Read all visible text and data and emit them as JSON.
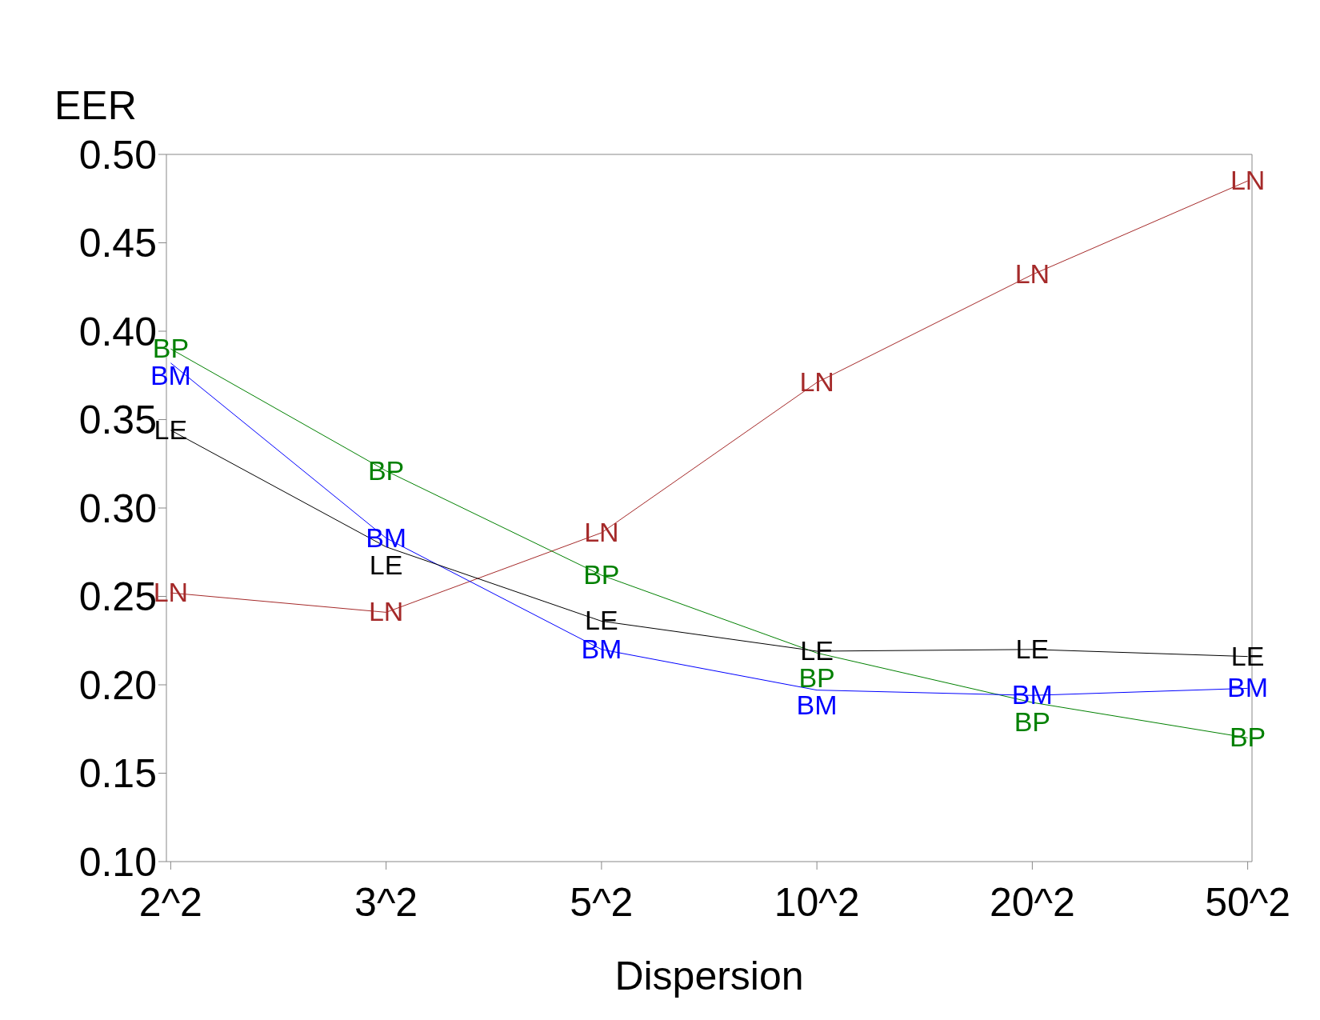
{
  "chart_data": {
    "type": "line",
    "xlabel": "Dispersion",
    "ylabel": "EER",
    "categories": [
      "2^2",
      "3^2",
      "5^2",
      "10^2",
      "20^2",
      "50^2"
    ],
    "series": [
      {
        "name": "LN",
        "color": "#a52a2a",
        "values": [
          0.252,
          0.241,
          0.286,
          0.371,
          0.432,
          0.485
        ]
      },
      {
        "name": "BP",
        "color": "#008000",
        "values": [
          0.39,
          0.321,
          0.262,
          0.218,
          0.19,
          0.17
        ]
      },
      {
        "name": "BM",
        "color": "#0000ff",
        "values": [
          0.382,
          0.283,
          0.22,
          0.197,
          0.194,
          0.198
        ]
      },
      {
        "name": "LE",
        "color": "#000000",
        "values": [
          0.344,
          0.278,
          0.236,
          0.219,
          0.22,
          0.216
        ]
      }
    ],
    "ylim": [
      0.1,
      0.5
    ],
    "yticks": [
      {
        "value": 0.1,
        "label": "0.10"
      },
      {
        "value": 0.15,
        "label": "0.15"
      },
      {
        "value": 0.2,
        "label": "0.20"
      },
      {
        "value": 0.25,
        "label": "0.25"
      },
      {
        "value": 0.3,
        "label": "0.30"
      },
      {
        "value": 0.35,
        "label": "0.35"
      },
      {
        "value": 0.4,
        "label": "0.40"
      },
      {
        "value": 0.45,
        "label": "0.45"
      },
      {
        "value": 0.5,
        "label": "0.50"
      }
    ],
    "grid": false,
    "legend": false,
    "marker": "none",
    "line_style": "solid"
  }
}
